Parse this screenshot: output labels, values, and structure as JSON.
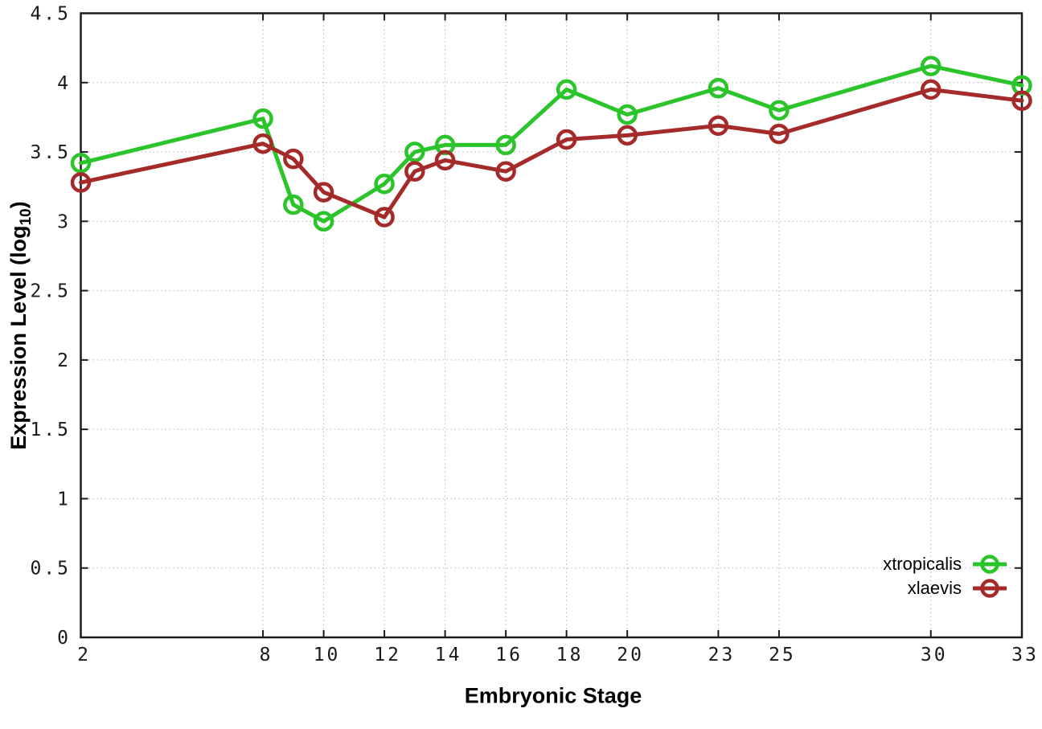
{
  "chart_data": {
    "type": "line",
    "title": "",
    "xlabel": "Embryonic Stage",
    "ylabel": "Expression Level (log10)",
    "ylabel_parts": {
      "prefix": "Expression Level (log",
      "sub": "10",
      "suffix": ")"
    },
    "x": [
      2,
      8,
      9,
      10,
      12,
      13,
      14,
      16,
      18,
      20,
      23,
      25,
      30,
      33
    ],
    "x_ticks": [
      2,
      8,
      10,
      12,
      14,
      16,
      18,
      20,
      23,
      25,
      30,
      33
    ],
    "y_ticks": [
      0,
      0.5,
      1,
      1.5,
      2,
      2.5,
      3,
      3.5,
      4,
      4.5
    ],
    "xlim": [
      2,
      33
    ],
    "ylim": [
      0,
      4.5
    ],
    "grid": true,
    "legend_position": "bottom-right",
    "series": [
      {
        "name": "xtropicalis",
        "color": "#2bc42b",
        "values": [
          3.42,
          3.74,
          3.12,
          3.0,
          3.27,
          3.5,
          3.55,
          3.55,
          3.95,
          3.77,
          3.96,
          3.8,
          4.12,
          3.98
        ]
      },
      {
        "name": "xlaevis",
        "color": "#a52a2a",
        "values": [
          3.28,
          3.56,
          3.45,
          3.21,
          3.03,
          3.36,
          3.44,
          3.36,
          3.59,
          3.62,
          3.69,
          3.63,
          3.95,
          3.87
        ]
      }
    ],
    "colors": {
      "background": "#ffffff",
      "axis": "#1c1c1c",
      "grid": "#b4b4b4",
      "tick_label": "#1a1a1a"
    }
  }
}
